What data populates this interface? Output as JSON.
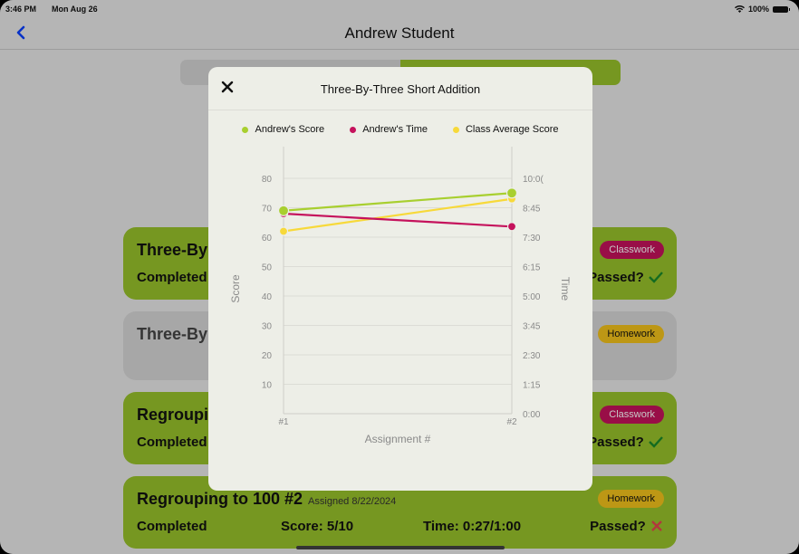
{
  "status": {
    "time": "3:46 PM",
    "date": "Mon Aug 26",
    "battery": "100%"
  },
  "nav": {
    "title": "Andrew Student"
  },
  "cards": [
    {
      "title": "Three-By",
      "assigned": "",
      "badge": "Classwork",
      "left": "Completed",
      "middle": "",
      "right_a": "",
      "passed": "Passed?",
      "status": "pass"
    },
    {
      "title": "Three-By",
      "assigned": "",
      "badge": "Homework",
      "left": "",
      "middle": "",
      "right_a": "",
      "passed": "",
      "status": "none"
    },
    {
      "title": "Regroupi",
      "assigned": "",
      "badge": "Classwork",
      "left": "Completed",
      "middle": "",
      "right_a": "",
      "passed": "Passed?",
      "status": "pass"
    },
    {
      "title": "Regrouping to 100 #2",
      "assigned": "Assigned 8/22/2024",
      "badge": "Homework",
      "left": "Completed",
      "middle": "Score: 5/10",
      "right_a": "Time: 0:27/1:00",
      "passed": "Passed?",
      "status": "fail"
    }
  ],
  "modal": {
    "title": "Three-By-Three Short Addition"
  },
  "colors": {
    "accent_green": "#98c22b",
    "score": "#a8cf2f",
    "time": "#c5125c",
    "class_avg": "#f7d93a",
    "back": "#0a40ff",
    "fail": "#e5484d",
    "pass": "#1a8a2a"
  },
  "chart_data": {
    "type": "line",
    "x": [
      "#1",
      "#2"
    ],
    "xlabel": "Assignment #",
    "ylabel": "Score",
    "y2label": "Time",
    "ylim": [
      0,
      80
    ],
    "yticks": [
      10,
      20,
      30,
      40,
      50,
      60,
      70,
      80
    ],
    "y2ticks": [
      "0:00",
      "1:15",
      "2:30",
      "3:45",
      "5:00",
      "6:15",
      "7:30",
      "8:45",
      "10:0("
    ],
    "series": [
      {
        "name": "Andrew's Score",
        "axis": "left",
        "values": [
          69,
          75
        ]
      },
      {
        "name": "Andrew's Time",
        "axis": "right",
        "values": [
          "8:30",
          "7:57"
        ]
      },
      {
        "name": "Class Average Score",
        "axis": "left",
        "values": [
          62,
          73
        ]
      }
    ]
  }
}
